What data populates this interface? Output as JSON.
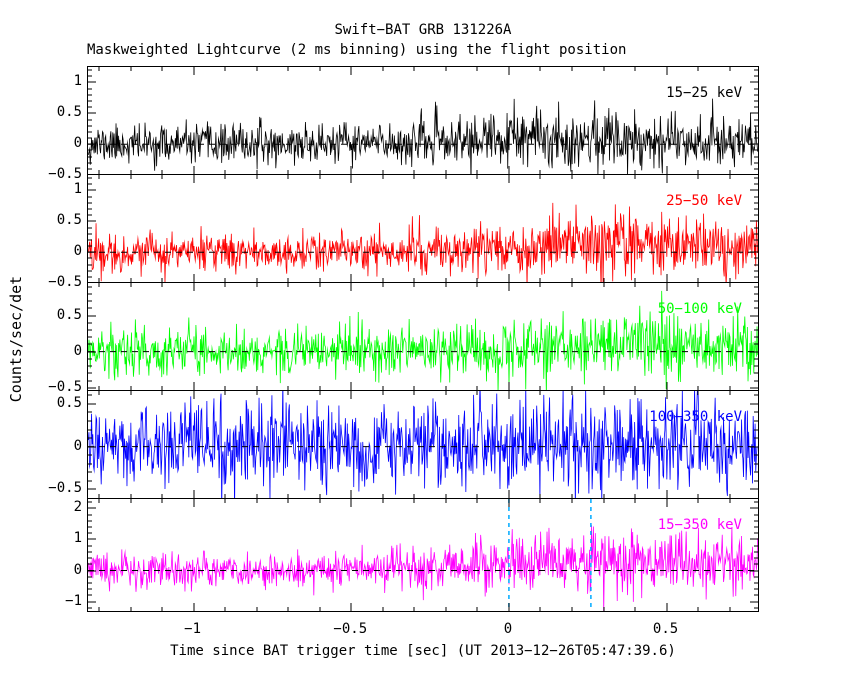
{
  "figure": {
    "background": "#FFFFFF",
    "foreground": "#000000"
  },
  "chart_data": {
    "type": "line",
    "title": "Swift−BAT GRB 131226A",
    "subtitle": "Maskweighted Lightcurve (2 ms binning) using the flight position",
    "xlabel": "Time since BAT trigger time [sec] (UT 2013−12−26T05:47:39.6)",
    "ylabel": "Counts/sec/det",
    "binning_ms": 2,
    "n_points": 1040,
    "grid": false,
    "x_axis": {
      "min": -1.335,
      "max": 0.79,
      "minor_step": 0.1,
      "major_ticks": [
        {
          "value": -1,
          "label": "−1"
        },
        {
          "value": -0.5,
          "label": "−0.5"
        },
        {
          "value": 0,
          "label": "0"
        },
        {
          "value": 0.5,
          "label": "0.5"
        }
      ]
    },
    "panels": [
      {
        "label": "15−25 keV",
        "color": "#000000",
        "ymin": -0.48,
        "ymax": 1.25,
        "minor_step": 0.1,
        "seed": 11,
        "yticks": [
          {
            "value": 1,
            "label": "1"
          },
          {
            "value": 0.5,
            "label": "0.5"
          },
          {
            "value": 0,
            "label": "0"
          },
          {
            "value": -0.5,
            "label": "−0.5"
          }
        ],
        "noise": {
          "baseline_sigma": 0.15,
          "burst_sigma_boost": 0.6,
          "burst_mean": 0.1,
          "burst_center": 0.3,
          "burst_width": 0.4
        }
      },
      {
        "label": "25−50 keV",
        "color": "#FF0000",
        "ymin": -0.48,
        "ymax": 1.25,
        "minor_step": 0.1,
        "seed": 22,
        "yticks": [
          {
            "value": 1,
            "label": "1"
          },
          {
            "value": 0.5,
            "label": "0.5"
          },
          {
            "value": 0,
            "label": "0"
          },
          {
            "value": -0.5,
            "label": "−0.5"
          }
        ],
        "noise": {
          "baseline_sigma": 0.15,
          "burst_sigma_boost": 0.8,
          "burst_mean": 0.13,
          "burst_center": 0.35,
          "burst_width": 0.35
        }
      },
      {
        "label": "50−100 keV",
        "color": "#00FF00",
        "ymin": -0.53,
        "ymax": 0.95,
        "minor_step": 0.1,
        "seed": 33,
        "yticks": [
          {
            "value": 0.5,
            "label": "0.5"
          },
          {
            "value": 0,
            "label": "0"
          },
          {
            "value": -0.5,
            "label": "−0.5"
          }
        ],
        "noise": {
          "baseline_sigma": 0.17,
          "burst_sigma_boost": 0.4,
          "burst_mean": 0.08,
          "burst_center": 0.45,
          "burst_width": 0.35
        }
      },
      {
        "label": "100−350 keV",
        "color": "#0000FF",
        "ymin": -0.6,
        "ymax": 0.65,
        "minor_step": 0.1,
        "seed": 44,
        "yticks": [
          {
            "value": 0.5,
            "label": "0.5"
          },
          {
            "value": 0,
            "label": "0"
          },
          {
            "value": -0.5,
            "label": "−0.5"
          }
        ],
        "noise": {
          "baseline_sigma": 0.24,
          "burst_sigma_boost": 0.15,
          "burst_mean": 0.03,
          "burst_center": 0.3,
          "burst_width": 0.35
        }
      },
      {
        "label": "15−350 keV",
        "color": "#FF00FF",
        "ymin": -1.3,
        "ymax": 2.3,
        "minor_step": 0.2,
        "seed": 55,
        "yticks": [
          {
            "value": 2,
            "label": "2"
          },
          {
            "value": 1,
            "label": "1"
          },
          {
            "value": 0,
            "label": "0"
          },
          {
            "value": -1,
            "label": "−1"
          }
        ],
        "noise": {
          "baseline_sigma": 0.28,
          "burst_sigma_boost": 0.9,
          "burst_mean": 0.32,
          "burst_center": 0.35,
          "burst_width": 0.38
        }
      }
    ],
    "zero_line": {
      "color": "#000000",
      "style": "dashed"
    },
    "burst_markers": {
      "panel_index": 4,
      "times": [
        0,
        0.26
      ],
      "color": "#00AAFF",
      "style": "dashed"
    }
  }
}
